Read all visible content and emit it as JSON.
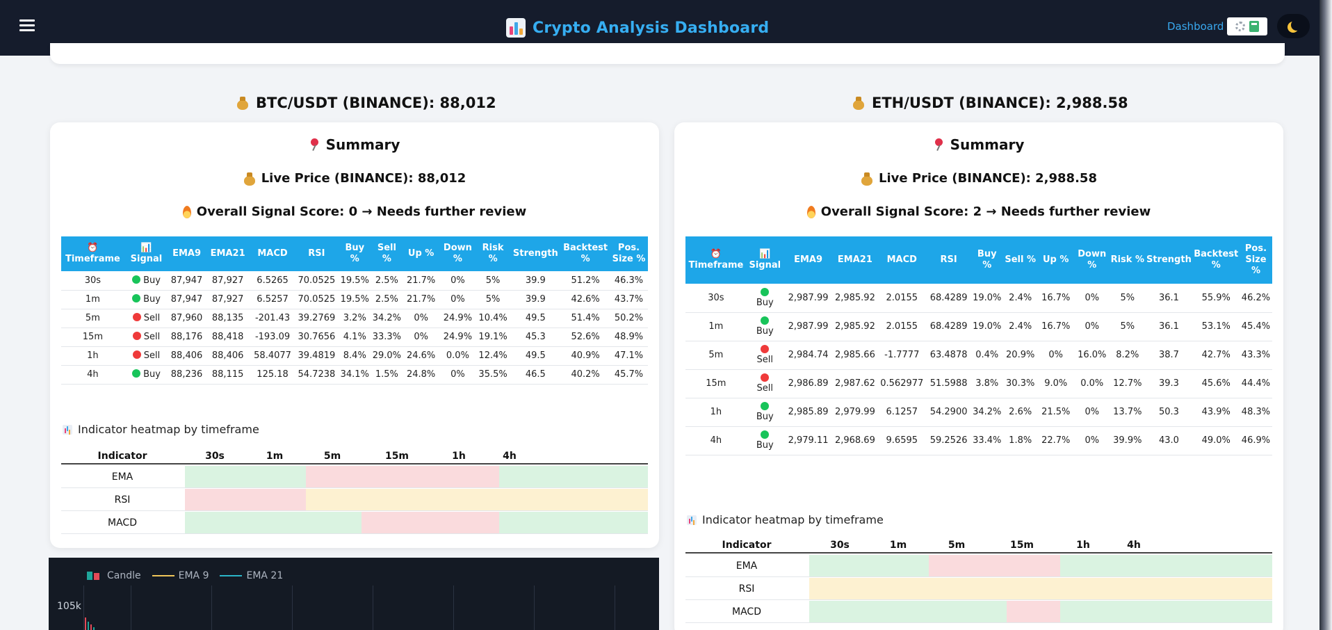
{
  "header": {
    "title": "Crypto Analysis Dashboard",
    "nav_link": "Dashboard",
    "icons": [
      "menu-icon",
      "dashboard-logo-icon",
      "gear-icon",
      "calculator-icon",
      "moon-icon"
    ]
  },
  "panels": [
    {
      "title": "BTC/USDT (BINANCE): 88,012",
      "summary_title": "Summary",
      "live_price": "Live Price (BINANCE): 88,012",
      "signal_score": "Overall Signal Score: 0 → Needs further review",
      "columns": [
        "⏰ Timeframe",
        "📊 Signal",
        "EMA9",
        "EMA21",
        "MACD",
        "RSI",
        "Buy %",
        "Sell %",
        "Up %",
        "Down %",
        "Risk %",
        "Strength",
        "Backtest %",
        "Pos. Size %"
      ],
      "rows": [
        [
          "30s",
          "Buy",
          "87,947",
          "87,927",
          "6.5265",
          "70.0525",
          "19.5%",
          "2.5%",
          "21.7%",
          "0%",
          "5%",
          "39.9",
          "51.2%",
          "46.3%"
        ],
        [
          "1m",
          "Buy",
          "87,947",
          "87,927",
          "6.5257",
          "70.0525",
          "19.5%",
          "2.5%",
          "21.7%",
          "0%",
          "5%",
          "39.9",
          "42.6%",
          "43.7%"
        ],
        [
          "5m",
          "Sell",
          "87,960",
          "88,135",
          "-201.43",
          "39.2769",
          "3.2%",
          "34.2%",
          "0%",
          "24.9%",
          "10.4%",
          "49.5",
          "51.4%",
          "50.2%"
        ],
        [
          "15m",
          "Sell",
          "88,176",
          "88,418",
          "-193.09",
          "30.7656",
          "4.1%",
          "33.3%",
          "0%",
          "24.9%",
          "19.1%",
          "45.3",
          "52.6%",
          "48.9%"
        ],
        [
          "1h",
          "Sell",
          "88,406",
          "88,406",
          "58.4077",
          "39.4819",
          "8.4%",
          "29.0%",
          "24.6%",
          "0.0%",
          "12.4%",
          "49.5",
          "40.9%",
          "47.1%"
        ],
        [
          "4h",
          "Buy",
          "88,236",
          "88,115",
          "125.18",
          "54.7238",
          "34.1%",
          "1.5%",
          "24.8%",
          "0%",
          "35.5%",
          "46.5",
          "40.2%",
          "45.7%"
        ]
      ],
      "heatmap_title": "Indicator heatmap by timeframe",
      "heatmap_columns": [
        "Indicator",
        "30s",
        "1m",
        "5m",
        "15m",
        "1h",
        "4h"
      ],
      "heatmap_rows": [
        {
          "label": "EMA",
          "cells": [
            "positive",
            "positive",
            "negative",
            "negative",
            "negative",
            "positive"
          ]
        },
        {
          "label": "RSI",
          "cells": [
            "negative",
            "negative",
            "neutral",
            "neutral",
            "neutral",
            "neutral"
          ]
        },
        {
          "label": "MACD",
          "cells": [
            "positive",
            "positive",
            "positive",
            "negative",
            "negative",
            "positive"
          ]
        }
      ]
    },
    {
      "title": "ETH/USDT (BINANCE): 2,988.58",
      "summary_title": "Summary",
      "live_price": "Live Price (BINANCE): 2,988.58",
      "signal_score": "Overall Signal Score: 2 → Needs further review",
      "columns": [
        "⏰ Timeframe",
        "📊 Signal",
        "EMA9",
        "EMA21",
        "MACD",
        "RSI",
        "Buy %",
        "Sell %",
        "Up %",
        "Down %",
        "Risk %",
        "Strength",
        "Backtest %",
        "Pos. Size %"
      ],
      "rows": [
        [
          "30s",
          "Buy",
          "2,987.99",
          "2,985.92",
          "2.0155",
          "68.4289",
          "19.0%",
          "2.4%",
          "16.7%",
          "0%",
          "5%",
          "36.1",
          "55.9%",
          "46.2%"
        ],
        [
          "1m",
          "Buy",
          "2,987.99",
          "2,985.92",
          "2.0155",
          "68.4289",
          "19.0%",
          "2.4%",
          "16.7%",
          "0%",
          "5%",
          "36.1",
          "53.1%",
          "45.4%"
        ],
        [
          "5m",
          "Sell",
          "2,984.74",
          "2,985.66",
          "-1.7777",
          "63.4878",
          "0.4%",
          "20.9%",
          "0%",
          "16.0%",
          "8.2%",
          "38.7",
          "42.7%",
          "43.3%"
        ],
        [
          "15m",
          "Sell",
          "2,986.89",
          "2,987.62",
          "0.562977",
          "51.5988",
          "3.8%",
          "30.3%",
          "9.0%",
          "0.0%",
          "12.7%",
          "39.3",
          "45.6%",
          "44.4%"
        ],
        [
          "1h",
          "Buy",
          "2,985.89",
          "2,979.99",
          "6.1257",
          "54.2900",
          "34.2%",
          "2.6%",
          "21.5%",
          "0%",
          "13.7%",
          "50.3",
          "43.9%",
          "48.3%"
        ],
        [
          "4h",
          "Buy",
          "2,979.11",
          "2,968.69",
          "9.6595",
          "59.2526",
          "33.4%",
          "1.8%",
          "22.7%",
          "0%",
          "39.9%",
          "43.0",
          "49.0%",
          "46.9%"
        ]
      ],
      "heatmap_title": "Indicator heatmap by timeframe",
      "heatmap_columns": [
        "Indicator",
        "30s",
        "1m",
        "5m",
        "15m",
        "1h",
        "4h"
      ],
      "heatmap_rows": [
        {
          "label": "EMA",
          "cells": [
            "positive",
            "positive",
            "negative",
            "negative",
            "positive",
            "positive"
          ]
        },
        {
          "label": "RSI",
          "cells": [
            "neutral",
            "neutral",
            "neutral",
            "neutral",
            "neutral",
            "neutral"
          ]
        },
        {
          "label": "MACD",
          "cells": [
            "positive",
            "positive",
            "positive",
            "negative",
            "positive",
            "positive"
          ]
        }
      ]
    }
  ],
  "price_chart": {
    "legend": [
      "Candle",
      "EMA 9",
      "EMA 21"
    ],
    "legend_colors": [
      "#1fa59a",
      "#f0c65a",
      "#2bb5c8"
    ],
    "y_tick": "105k"
  }
}
